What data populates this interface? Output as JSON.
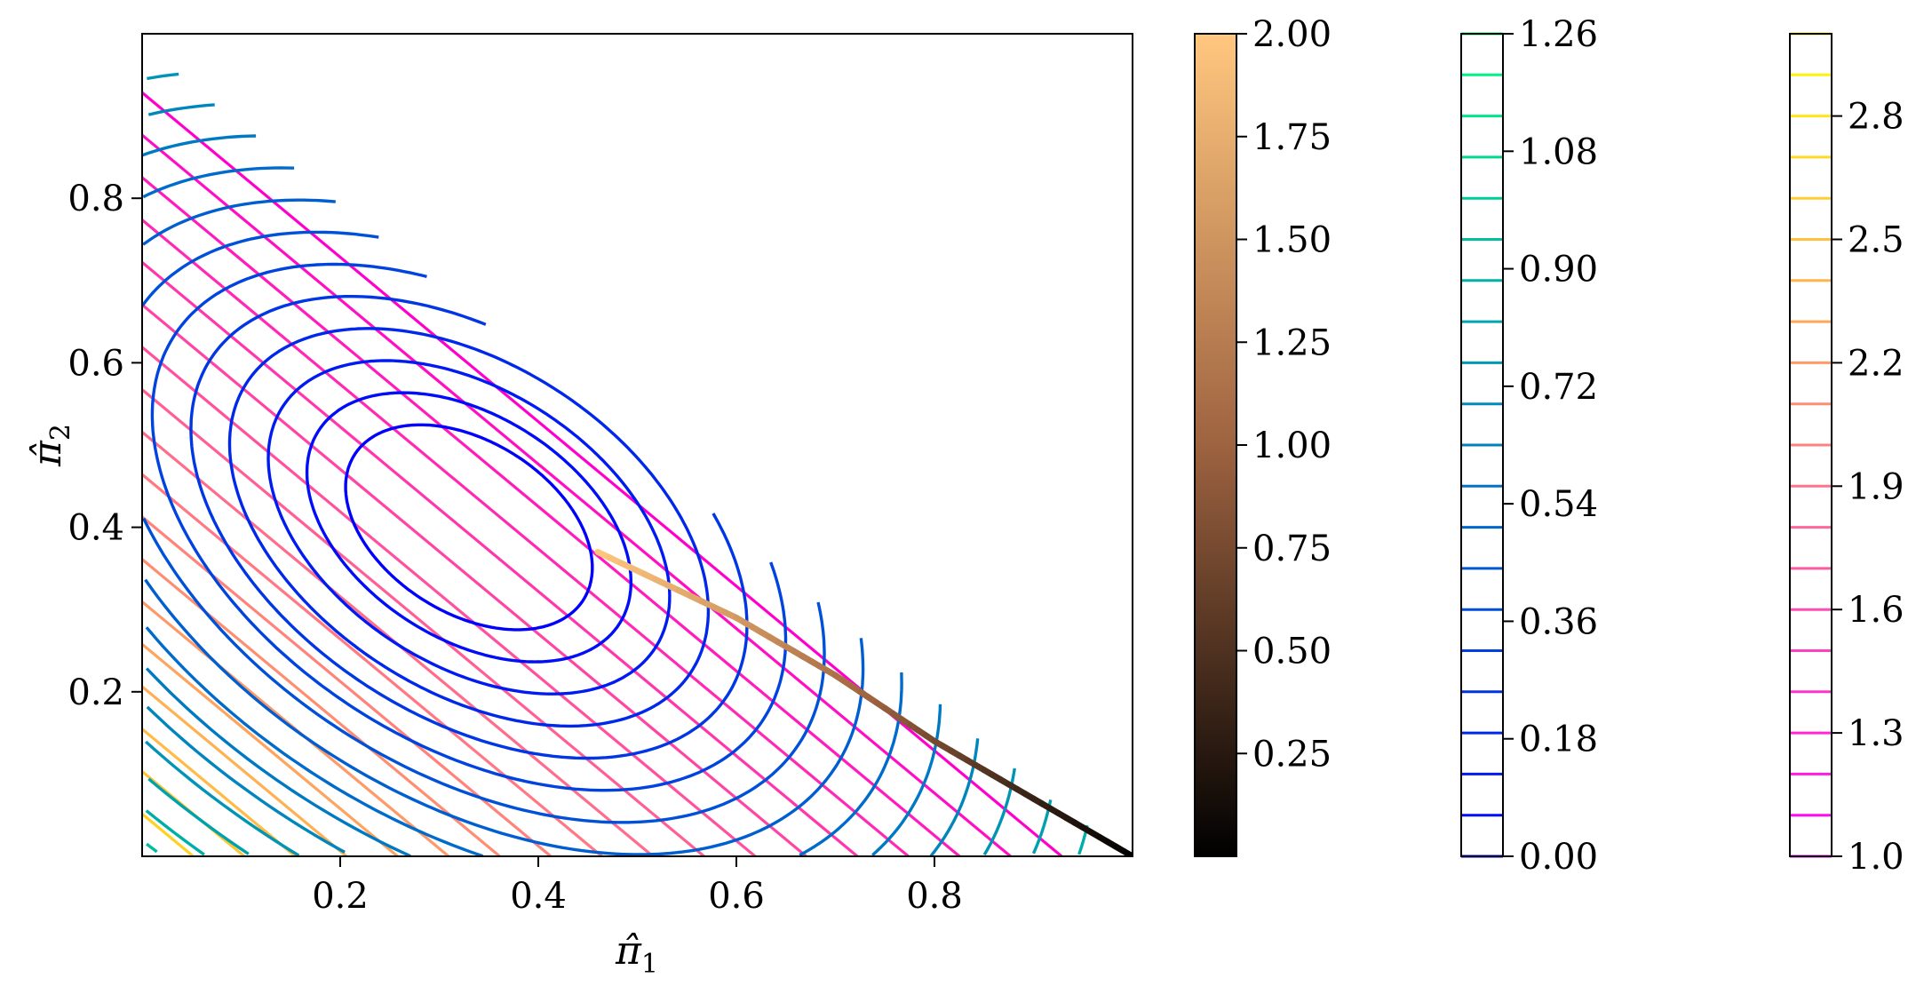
{
  "chart_data": {
    "type": "contour",
    "xlabel": {
      "base": "π̂",
      "sub": "1"
    },
    "ylabel": {
      "base": "π̂",
      "sub": "2"
    },
    "xlim": [
      0,
      1
    ],
    "ylim": [
      0,
      1
    ],
    "xticks": [
      "0.2",
      "0.4",
      "0.6",
      "0.8"
    ],
    "yticks": [
      "0.2",
      "0.4",
      "0.6",
      "0.8"
    ],
    "grid": false,
    "domain": "simplex: π̂1 + π̂2 ≤ 1",
    "contour_center": [
      0.33,
      0.4
    ],
    "path": {
      "points": [
        [
          0.46,
          0.37
        ],
        [
          0.6,
          0.29
        ],
        [
          0.7,
          0.22
        ],
        [
          0.8,
          0.14
        ],
        [
          0.9,
          0.07
        ],
        [
          1.0,
          0.0
        ]
      ],
      "color_values": [
        2.0,
        1.55,
        1.15,
        0.75,
        0.35,
        0.0
      ]
    },
    "colorbars": [
      {
        "name": "path",
        "type": "continuous",
        "range": [
          0.0,
          2.0
        ],
        "ticks": [
          "0.25",
          "0.50",
          "0.75",
          "1.00",
          "1.25",
          "1.50",
          "1.75",
          "2.00"
        ],
        "colormap": "copper"
      },
      {
        "name": "contour-set-1",
        "type": "discrete",
        "range": [
          0.0,
          1.26
        ],
        "levels": 21,
        "ticks": [
          "0.00",
          "0.18",
          "0.36",
          "0.54",
          "0.72",
          "0.90",
          "1.08",
          "1.26"
        ],
        "colormap": "winter"
      },
      {
        "name": "contour-set-2",
        "type": "discrete",
        "range": [
          1.0,
          3.0
        ],
        "levels": 21,
        "ticks": [
          "1.0",
          "1.3",
          "1.6",
          "1.9",
          "2.2",
          "2.5",
          "2.8"
        ],
        "colormap": "spring"
      }
    ]
  }
}
